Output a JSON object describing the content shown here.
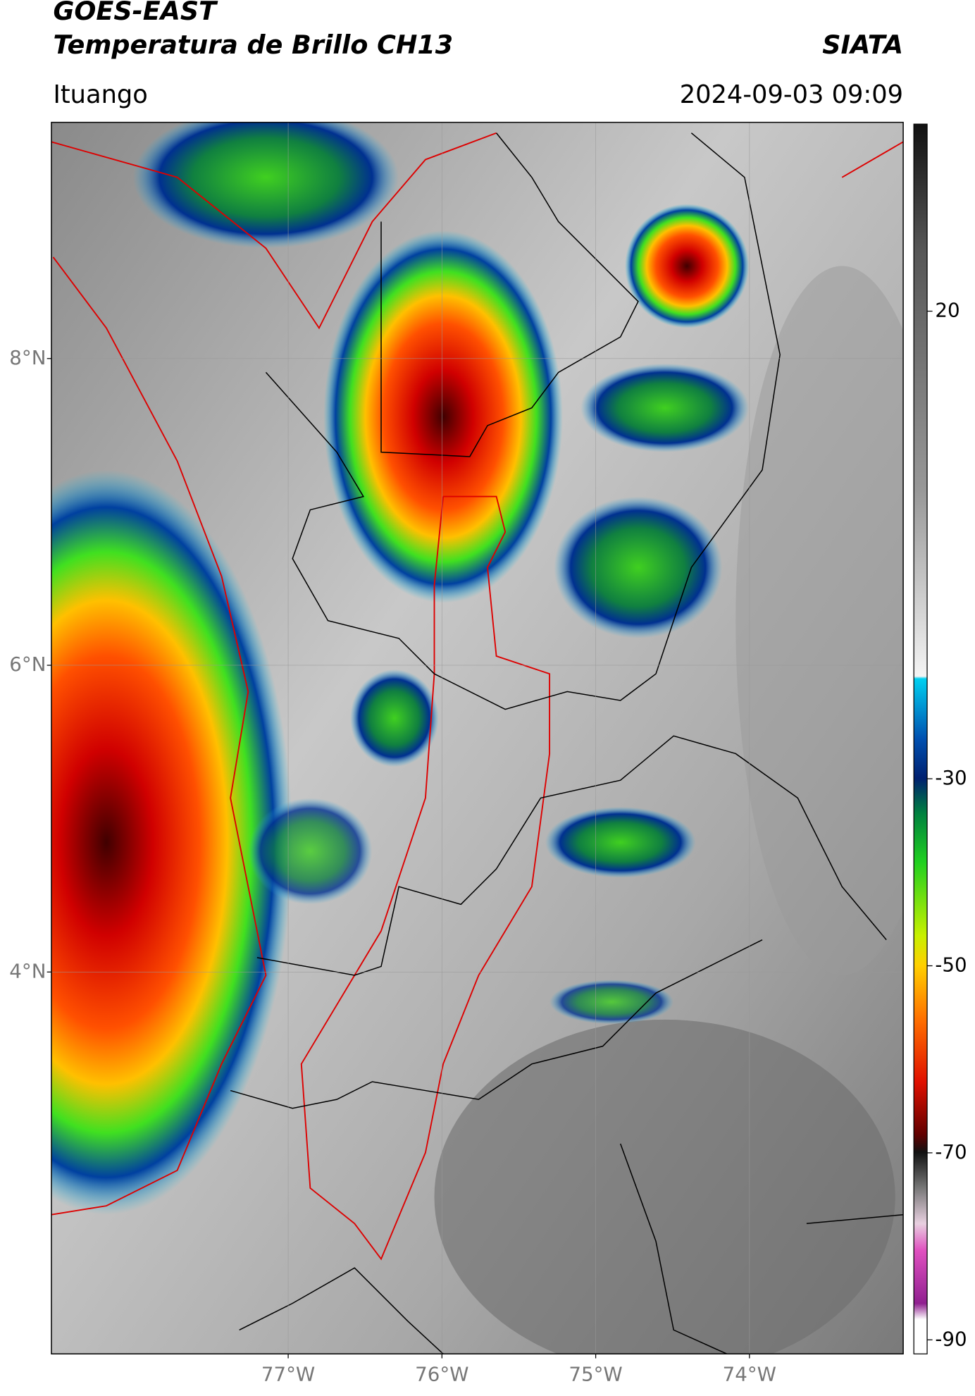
{
  "header": {
    "title_line1": "GOES-EAST",
    "title_line2": "Temperatura de Brillo CH13",
    "source": "SIATA",
    "location": "Ituango",
    "datetime": "2024-09-03 09:09"
  },
  "map": {
    "lon_range": [
      -78.54,
      -73.0
    ],
    "lat_range": [
      1.51,
      9.54
    ],
    "grid": true,
    "lat_ticks": [
      {
        "value": 8,
        "label": "8°N"
      },
      {
        "value": 6,
        "label": "6°N"
      },
      {
        "value": 4,
        "label": "4°N"
      }
    ],
    "lon_ticks": [
      {
        "value": -77,
        "label": "77°W"
      },
      {
        "value": -76,
        "label": "76°W"
      },
      {
        "value": -75,
        "label": "75°W"
      },
      {
        "value": -74,
        "label": "74°W"
      }
    ]
  },
  "colorbar": {
    "range": [
      -91.5,
      40
    ],
    "ticks": [
      20,
      -30,
      -50,
      -70,
      -90
    ]
  }
}
